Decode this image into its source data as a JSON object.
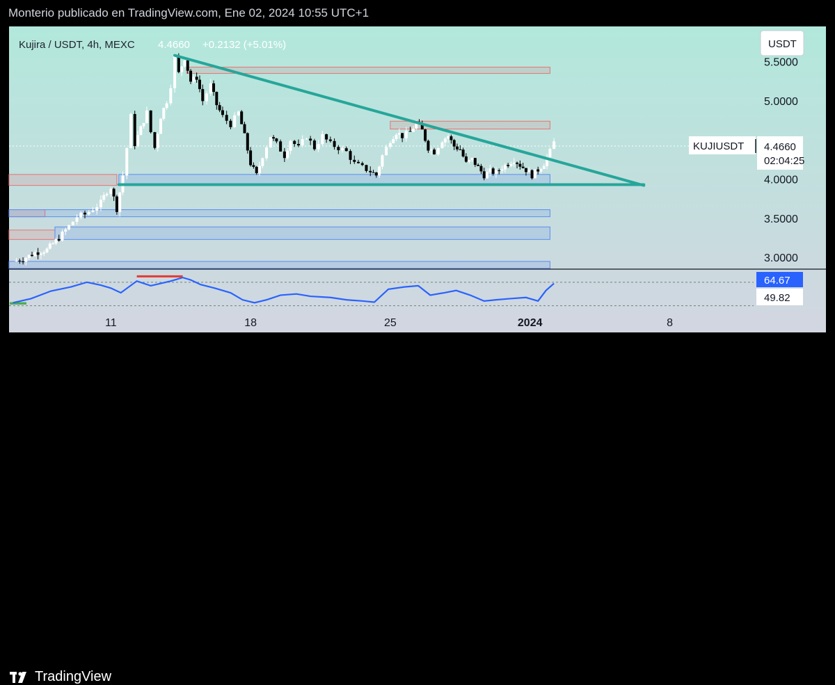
{
  "header": {
    "published_by": "Monterio publicado en TradingView.com, Ene 02, 2024 10:55 UTC+1"
  },
  "footer": {
    "brand": "TradingView"
  },
  "colors": {
    "background_top": "#b2e8dc",
    "background_bottom": "#d2d6e0",
    "trendline": "#26a69a",
    "rsi_line": "#2962ff",
    "candle_up": "#ffffff",
    "candle_down": "#000000",
    "zone_red": "#e57373",
    "zone_blue": "#5b8def"
  },
  "chart_data": {
    "type": "candlestick",
    "symbol_line": "Kujira / USDT, 4h, MEXC",
    "last_price": "4.4660",
    "change": "+0.2132 (+5.01%)",
    "currency": "USDT",
    "price_tag": {
      "label": "KUJIUSDT",
      "value": "4.4660",
      "countdown": "02:04:25"
    },
    "y_ticks": [
      "5.5000",
      "5.0000",
      "4.0000",
      "3.5000",
      "3.0000"
    ],
    "y_tick_values": [
      5.5,
      5.0,
      4.0,
      3.5,
      3.0
    ],
    "ylim": [
      2.86,
      5.95
    ],
    "x_ticks": [
      "11",
      "18",
      "25",
      "2024",
      "8"
    ],
    "x_tick_positions_days": [
      11,
      18,
      25,
      32,
      39
    ],
    "close_path": [
      [
        6.1,
        2.95
      ],
      [
        6.6,
        2.98
      ],
      [
        7.2,
        3.06
      ],
      [
        7.8,
        3.1
      ],
      [
        8.4,
        3.25
      ],
      [
        8.9,
        3.4
      ],
      [
        9.3,
        3.52
      ],
      [
        9.7,
        3.55
      ],
      [
        10.1,
        3.62
      ],
      [
        10.5,
        3.7
      ],
      [
        10.8,
        3.85
      ],
      [
        11.0,
        3.9
      ],
      [
        11.3,
        3.62
      ],
      [
        11.6,
        4.05
      ],
      [
        11.8,
        4.4
      ],
      [
        12.0,
        4.8
      ],
      [
        12.2,
        4.45
      ],
      [
        12.5,
        4.65
      ],
      [
        12.8,
        4.85
      ],
      [
        13.0,
        4.6
      ],
      [
        13.2,
        4.4
      ],
      [
        13.5,
        4.8
      ],
      [
        13.8,
        5.0
      ],
      [
        14.0,
        5.2
      ],
      [
        14.2,
        5.55
      ],
      [
        14.4,
        5.35
      ],
      [
        14.7,
        5.55
      ],
      [
        15.0,
        5.25
      ],
      [
        15.3,
        5.3
      ],
      [
        15.6,
        5.0
      ],
      [
        16.0,
        5.2
      ],
      [
        16.3,
        4.95
      ],
      [
        16.6,
        4.8
      ],
      [
        17.0,
        4.7
      ],
      [
        17.4,
        4.85
      ],
      [
        17.7,
        4.55
      ],
      [
        18.0,
        4.2
      ],
      [
        18.3,
        4.05
      ],
      [
        18.6,
        4.3
      ],
      [
        19.0,
        4.55
      ],
      [
        19.3,
        4.45
      ],
      [
        19.7,
        4.3
      ],
      [
        20.0,
        4.5
      ],
      [
        20.4,
        4.4
      ],
      [
        20.8,
        4.55
      ],
      [
        21.2,
        4.4
      ],
      [
        21.6,
        4.55
      ],
      [
        22.0,
        4.45
      ],
      [
        22.4,
        4.4
      ],
      [
        22.8,
        4.35
      ],
      [
        23.2,
        4.2
      ],
      [
        23.6,
        4.15
      ],
      [
        24.0,
        4.1
      ],
      [
        24.3,
        4.05
      ],
      [
        24.6,
        4.3
      ],
      [
        25.0,
        4.5
      ],
      [
        25.3,
        4.6
      ],
      [
        25.6,
        4.55
      ],
      [
        26.0,
        4.6
      ],
      [
        26.3,
        4.72
      ],
      [
        26.6,
        4.62
      ],
      [
        26.9,
        4.4
      ],
      [
        27.2,
        4.35
      ],
      [
        27.6,
        4.5
      ],
      [
        27.9,
        4.55
      ],
      [
        28.2,
        4.42
      ],
      [
        28.5,
        4.38
      ],
      [
        28.8,
        4.2
      ],
      [
        29.1,
        4.25
      ],
      [
        29.4,
        4.15
      ],
      [
        29.7,
        4.05
      ],
      [
        30.0,
        4.1
      ],
      [
        30.3,
        4.08
      ],
      [
        30.6,
        4.15
      ],
      [
        30.9,
        4.2
      ],
      [
        31.2,
        4.25
      ],
      [
        31.5,
        4.18
      ],
      [
        31.8,
        4.12
      ],
      [
        32.1,
        4.05
      ],
      [
        32.4,
        4.12
      ],
      [
        32.7,
        4.2
      ],
      [
        33.0,
        4.35
      ],
      [
        33.2,
        4.47
      ]
    ],
    "trendlines": [
      {
        "name": "descending",
        "from": [
          14.2,
          5.58
        ],
        "to": [
          37.7,
          3.92
        ]
      },
      {
        "name": "support",
        "from": [
          11.4,
          3.93
        ],
        "to": [
          37.7,
          3.93
        ]
      }
    ],
    "zones": [
      {
        "kind": "red",
        "x": [
          14.8,
          33.0
        ],
        "y": [
          5.35,
          5.43
        ]
      },
      {
        "kind": "red",
        "x": [
          25.0,
          33.0
        ],
        "y": [
          4.64,
          4.74
        ]
      },
      {
        "kind": "red",
        "x": [
          5.9,
          11.3
        ],
        "y": [
          3.92,
          4.06
        ]
      },
      {
        "kind": "red",
        "x": [
          5.9,
          7.7
        ],
        "y": [
          3.52,
          3.61
        ]
      },
      {
        "kind": "red",
        "x": [
          5.9,
          8.2
        ],
        "y": [
          3.23,
          3.35
        ]
      },
      {
        "kind": "blue",
        "x": [
          11.4,
          33.0
        ],
        "y": [
          3.93,
          4.06
        ]
      },
      {
        "kind": "blue",
        "x": [
          5.9,
          33.0
        ],
        "y": [
          3.52,
          3.61
        ]
      },
      {
        "kind": "blue",
        "x": [
          8.2,
          33.0
        ],
        "y": [
          3.23,
          3.39
        ]
      },
      {
        "kind": "blue",
        "x": [
          5.9,
          33.0
        ],
        "y": [
          2.86,
          2.95
        ]
      }
    ],
    "xlim": [
      5.9,
      43.2
    ],
    "rsi": {
      "value": "64.67",
      "signal": "49.82",
      "ylim": [
        20,
        90
      ],
      "upper_band": 70,
      "lower_band": 30,
      "path": [
        [
          6.1,
          35
        ],
        [
          7.0,
          42
        ],
        [
          8.0,
          55
        ],
        [
          9.0,
          62
        ],
        [
          9.8,
          70
        ],
        [
          10.5,
          65
        ],
        [
          11.0,
          60
        ],
        [
          11.5,
          52
        ],
        [
          12.3,
          72
        ],
        [
          13.0,
          64
        ],
        [
          13.5,
          68
        ],
        [
          14.0,
          72
        ],
        [
          14.6,
          78
        ],
        [
          15.0,
          74
        ],
        [
          15.5,
          66
        ],
        [
          16.2,
          60
        ],
        [
          17.0,
          52
        ],
        [
          17.6,
          40
        ],
        [
          18.2,
          35
        ],
        [
          18.8,
          40
        ],
        [
          19.5,
          48
        ],
        [
          20.3,
          50
        ],
        [
          21.0,
          46
        ],
        [
          22.0,
          44
        ],
        [
          22.8,
          40
        ],
        [
          23.6,
          38
        ],
        [
          24.2,
          36
        ],
        [
          24.9,
          58
        ],
        [
          25.7,
          62
        ],
        [
          26.4,
          64
        ],
        [
          27.0,
          48
        ],
        [
          27.7,
          52
        ],
        [
          28.3,
          56
        ],
        [
          29.0,
          48
        ],
        [
          29.7,
          38
        ],
        [
          30.3,
          40
        ],
        [
          31.0,
          42
        ],
        [
          31.8,
          44
        ],
        [
          32.4,
          38
        ],
        [
          32.8,
          56
        ],
        [
          33.2,
          68
        ]
      ]
    }
  }
}
